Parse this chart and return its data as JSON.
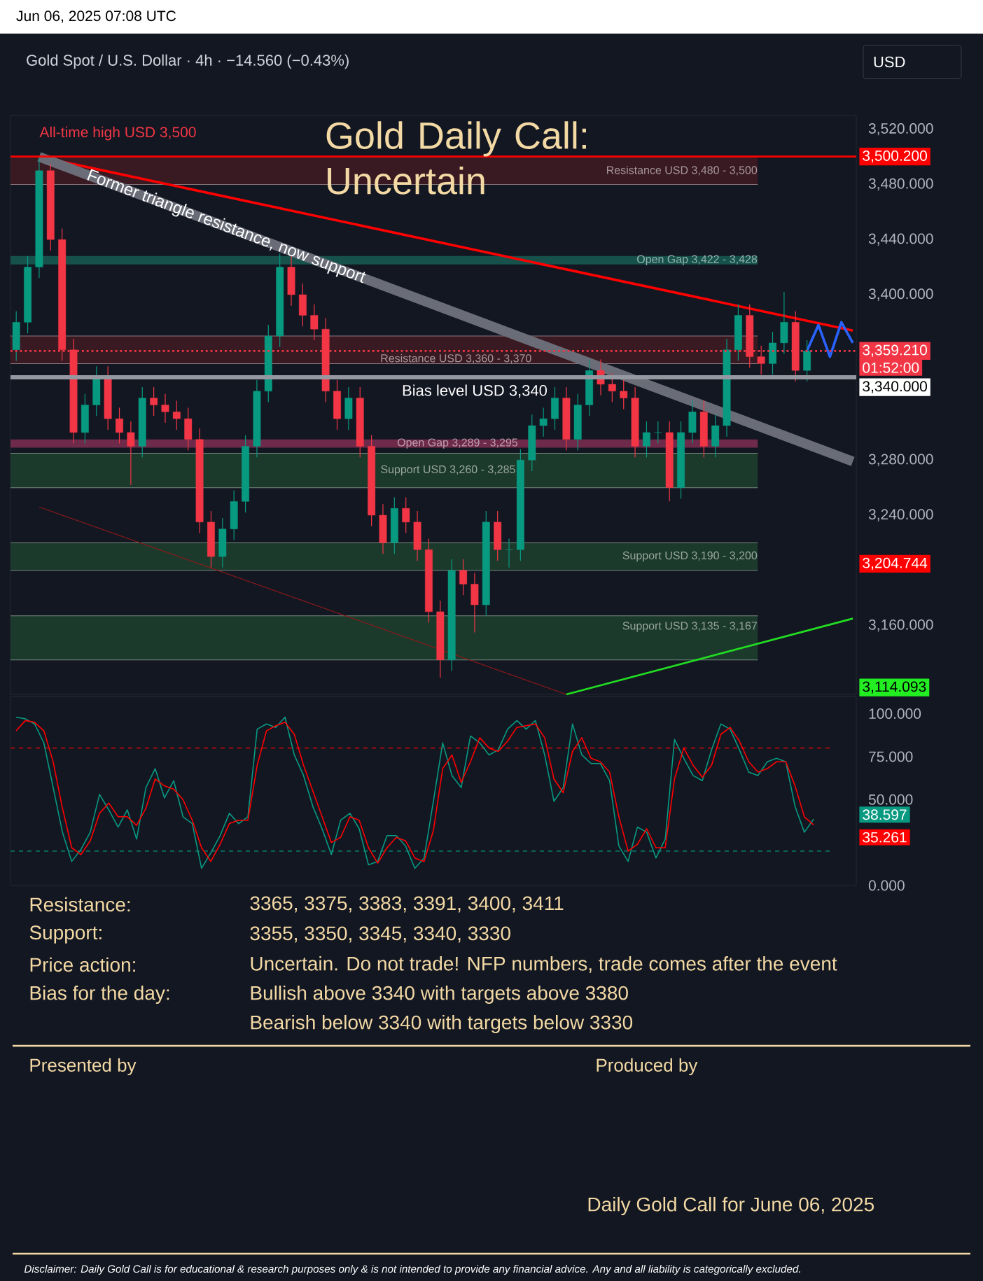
{
  "chart_data": [
    {
      "type": "candlestick",
      "title": "Gold Daily Call: Uncertain",
      "subtitle": "Gold Spot / U.S. Dollar · 4h · −14.560 (−0.43%)",
      "categories": [
        null,
        null,
        null,
        null,
        null,
        null,
        null,
        null,
        null,
        null,
        null,
        null,
        null,
        null,
        null,
        null,
        null,
        null,
        null,
        null,
        null,
        null,
        null,
        null,
        null,
        null,
        null,
        null,
        null,
        null,
        null,
        null,
        null,
        null,
        null,
        null,
        null,
        null,
        null,
        null,
        null,
        null,
        null,
        null,
        null,
        null,
        null,
        null,
        null,
        null,
        null,
        null,
        null,
        null,
        null,
        null,
        null,
        null,
        null,
        null,
        null,
        null,
        null,
        null,
        null,
        null,
        null,
        null,
        null,
        null,
        null,
        null,
        null,
        null
      ],
      "ohlc": [
        [
          3360,
          3388,
          3352,
          3380
        ],
        [
          3380,
          3428,
          3372,
          3420
        ],
        [
          3420,
          3500,
          3412,
          3490
        ],
        [
          3490,
          3495,
          3432,
          3440
        ],
        [
          3440,
          3448,
          3352,
          3360
        ],
        [
          3360,
          3368,
          3292,
          3300
        ],
        [
          3300,
          3328,
          3292,
          3320
        ],
        [
          3320,
          3348,
          3312,
          3340
        ],
        [
          3340,
          3348,
          3302,
          3310
        ],
        [
          3310,
          3318,
          3292,
          3300
        ],
        [
          3300,
          3308,
          3262,
          3290
        ],
        [
          3290,
          3333,
          3282,
          3325
        ],
        [
          3325,
          3333,
          3312,
          3320
        ],
        [
          3320,
          3328,
          3307,
          3315
        ],
        [
          3315,
          3323,
          3302,
          3310
        ],
        [
          3310,
          3318,
          3287,
          3295
        ],
        [
          3295,
          3303,
          3227,
          3235
        ],
        [
          3235,
          3243,
          3202,
          3210
        ],
        [
          3210,
          3238,
          3202,
          3230
        ],
        [
          3230,
          3258,
          3222,
          3250
        ],
        [
          3250,
          3298,
          3242,
          3290
        ],
        [
          3290,
          3338,
          3282,
          3330
        ],
        [
          3330,
          3378,
          3322,
          3370
        ],
        [
          3370,
          3430,
          3362,
          3420
        ],
        [
          3420,
          3428,
          3392,
          3400
        ],
        [
          3400,
          3408,
          3377,
          3385
        ],
        [
          3385,
          3393,
          3367,
          3375
        ],
        [
          3375,
          3383,
          3322,
          3330
        ],
        [
          3330,
          3338,
          3302,
          3310
        ],
        [
          3310,
          3333,
          3302,
          3325
        ],
        [
          3325,
          3333,
          3282,
          3290
        ],
        [
          3290,
          3298,
          3232,
          3240
        ],
        [
          3240,
          3248,
          3212,
          3220
        ],
        [
          3220,
          3253,
          3212,
          3245
        ],
        [
          3245,
          3253,
          3227,
          3235
        ],
        [
          3235,
          3243,
          3207,
          3215
        ],
        [
          3215,
          3223,
          3162,
          3170
        ],
        [
          3170,
          3178,
          3122,
          3135
        ],
        [
          3135,
          3208,
          3127,
          3200
        ],
        [
          3200,
          3208,
          3182,
          3190
        ],
        [
          3190,
          3198,
          3155,
          3175
        ],
        [
          3175,
          3243,
          3167,
          3235
        ],
        [
          3235,
          3243,
          3207,
          3215
        ],
        [
          3215,
          3223,
          3202,
          3215
        ],
        [
          3215,
          3288,
          3207,
          3280
        ],
        [
          3280,
          3313,
          3272,
          3305
        ],
        [
          3305,
          3318,
          3297,
          3310
        ],
        [
          3310,
          3333,
          3302,
          3325
        ],
        [
          3325,
          3333,
          3287,
          3295
        ],
        [
          3295,
          3328,
          3287,
          3320
        ],
        [
          3320,
          3353,
          3312,
          3345
        ],
        [
          3345,
          3353,
          3327,
          3335
        ],
        [
          3335,
          3343,
          3322,
          3330
        ],
        [
          3330,
          3338,
          3317,
          3325
        ],
        [
          3325,
          3333,
          3282,
          3290
        ],
        [
          3290,
          3308,
          3282,
          3300
        ],
        [
          3300,
          3308,
          3292,
          3300
        ],
        [
          3300,
          3308,
          3250,
          3260
        ],
        [
          3260,
          3308,
          3252,
          3300
        ],
        [
          3300,
          3323,
          3292,
          3315
        ],
        [
          3315,
          3323,
          3282,
          3290
        ],
        [
          3290,
          3313,
          3282,
          3305
        ],
        [
          3305,
          3368,
          3297,
          3360
        ],
        [
          3360,
          3393,
          3352,
          3385
        ],
        [
          3385,
          3393,
          3347,
          3355
        ],
        [
          3355,
          3363,
          3342,
          3350
        ],
        [
          3350,
          3373,
          3342,
          3365
        ],
        [
          3365,
          3402,
          3357,
          3380
        ],
        [
          3380,
          3388,
          3337,
          3345
        ],
        [
          3345,
          3367,
          3337,
          3359.21
        ],
        null,
        null,
        null,
        null
      ],
      "series": [
        {
          "type": "line",
          "color": "#ff0000",
          "values": [
            null,
            null,
            3500,
            null,
            null,
            null,
            null,
            null,
            null,
            null,
            null,
            null,
            null,
            null,
            null,
            null,
            null,
            null,
            null,
            null,
            null,
            null,
            null,
            null,
            null,
            null,
            null,
            null,
            null,
            null,
            null,
            null,
            null,
            null,
            null,
            null,
            null,
            null,
            null,
            null,
            null,
            null,
            null,
            null,
            null,
            null,
            null,
            null,
            null,
            null,
            null,
            null,
            null,
            null,
            null,
            null,
            null,
            null,
            null,
            null,
            null,
            null,
            null,
            null,
            null,
            null,
            null,
            null,
            null,
            null,
            null,
            null,
            null,
            3374
          ]
        },
        {
          "type": "line",
          "color": "#6a6d78",
          "values": [
            null,
            null,
            3500,
            null,
            null,
            null,
            null,
            null,
            null,
            null,
            null,
            null,
            null,
            null,
            null,
            null,
            null,
            null,
            null,
            null,
            null,
            null,
            null,
            null,
            null,
            null,
            null,
            null,
            null,
            null,
            null,
            null,
            null,
            null,
            null,
            null,
            null,
            null,
            null,
            null,
            null,
            null,
            null,
            null,
            null,
            null,
            null,
            null,
            null,
            null,
            null,
            null,
            null,
            null,
            null,
            null,
            null,
            null,
            null,
            null,
            null,
            null,
            null,
            null,
            null,
            null,
            null,
            null,
            null,
            null,
            null,
            null,
            null,
            3279
          ]
        },
        {
          "type": "line",
          "color": "#8b1a1a",
          "values": [
            null,
            null,
            3246,
            null,
            null,
            null,
            null,
            null,
            null,
            null,
            null,
            null,
            null,
            null,
            null,
            null,
            null,
            null,
            null,
            null,
            null,
            null,
            null,
            null,
            null,
            null,
            null,
            null,
            null,
            null,
            null,
            null,
            null,
            null,
            null,
            null,
            null,
            null,
            null,
            null,
            null,
            null,
            null,
            null,
            null,
            null,
            null,
            null,
            3110,
            null,
            null,
            null,
            null,
            null,
            null,
            null,
            null,
            null,
            null,
            null,
            null,
            null,
            null,
            null,
            null,
            null,
            null,
            null,
            null,
            null,
            null,
            null,
            null,
            null
          ]
        },
        {
          "type": "line",
          "color": "#22dd22",
          "values": [
            null,
            null,
            null,
            null,
            null,
            null,
            null,
            null,
            null,
            null,
            null,
            null,
            null,
            null,
            null,
            null,
            null,
            null,
            null,
            null,
            null,
            null,
            null,
            null,
            null,
            null,
            null,
            null,
            null,
            null,
            null,
            null,
            null,
            null,
            null,
            null,
            null,
            null,
            null,
            null,
            null,
            null,
            null,
            null,
            null,
            null,
            null,
            null,
            3110,
            null,
            null,
            null,
            null,
            null,
            null,
            null,
            null,
            null,
            null,
            null,
            null,
            null,
            null,
            null,
            null,
            null,
            null,
            null,
            null,
            null,
            null,
            null,
            null,
            3165
          ]
        },
        {
          "type": "line",
          "color": "#2962ff",
          "values": [
            null,
            null,
            null,
            null,
            null,
            null,
            null,
            null,
            null,
            null,
            null,
            null,
            null,
            null,
            null,
            null,
            null,
            null,
            null,
            null,
            null,
            null,
            null,
            null,
            null,
            null,
            null,
            null,
            null,
            null,
            null,
            null,
            null,
            null,
            null,
            null,
            null,
            null,
            null,
            null,
            null,
            null,
            null,
            null,
            null,
            null,
            null,
            null,
            null,
            null,
            null,
            null,
            null,
            null,
            null,
            null,
            null,
            null,
            null,
            null,
            null,
            null,
            null,
            null,
            null,
            null,
            null,
            null,
            null,
            3359.21,
            3378,
            3355,
            3380,
            3365
          ]
        }
      ],
      "ylim": [
        3110,
        3530
      ],
      "yticks": [
        {
          "value": 3160,
          "label": "3,160.000"
        },
        {
          "value": 3240,
          "label": "3,240.000"
        },
        {
          "value": 3280,
          "label": "3,280.000"
        },
        {
          "value": 3400,
          "label": "3,400.000"
        },
        {
          "value": 3440,
          "label": "3,440.000"
        },
        {
          "value": 3480,
          "label": "3,480.000"
        },
        {
          "value": 3520,
          "label": "3,520.000"
        }
      ],
      "bands": [
        {
          "axis": "y",
          "from": 3480,
          "to": 3500,
          "label": "Resistance USD 3,480 - 3,500",
          "color": "#3a1a22"
        },
        {
          "axis": "y",
          "from": 3422,
          "to": 3428,
          "label": "Open Gap 3,422 - 3,428",
          "color": "#16524b"
        },
        {
          "axis": "y",
          "from": 3350,
          "to": 3370,
          "label": "Resistance USD 3,360 - 3,370",
          "color": "#3a1a22"
        },
        {
          "axis": "y",
          "from": 3289,
          "to": 3295,
          "label": "Open Gap 3,289 - 3,295",
          "color": "#6e2a4a"
        },
        {
          "axis": "y",
          "from": 3260,
          "to": 3285,
          "label": "Support USD 3,260 - 3,285",
          "color": "#1c3a2c"
        },
        {
          "axis": "y",
          "from": 3200,
          "to": 3220,
          "label": "Support USD 3,190 - 3,200",
          "color": "#1c3a2c"
        },
        {
          "axis": "y",
          "from": 3135,
          "to": 3167,
          "label": "Support USD 3,135 - 3,167",
          "color": "#1c3a2c"
        }
      ],
      "ref_lines": [
        {
          "axis": "y",
          "value": 3500.2,
          "label": "3,500.200",
          "color": "#ff0000"
        },
        {
          "axis": "y",
          "value": 3359.21,
          "label": "3,359.210",
          "color": "#f23645",
          "line_style": "dotted"
        },
        {
          "axis": "y",
          "value": 3340,
          "label": "3,340.000",
          "color": "#9598a1"
        }
      ],
      "annotations": [
        "Jun 06, 2025 07:08 UTC",
        "USD",
        "All-time high USD 3,500",
        "Former triangle resistance, now support",
        "Bias level USD 3,340",
        "01:52:00",
        "3,204.744",
        "3,114.093"
      ]
    },
    {
      "type": "line",
      "categories": [
        null,
        null,
        null,
        null,
        null,
        null,
        null,
        null,
        null,
        null,
        null,
        null,
        null,
        null,
        null,
        null,
        null,
        null,
        null,
        null,
        null,
        null,
        null,
        null,
        null,
        null,
        null,
        null,
        null,
        null,
        null,
        null,
        null,
        null,
        null,
        null,
        null,
        null,
        null,
        null,
        null,
        null,
        null,
        null,
        null,
        null,
        null,
        null,
        null,
        null,
        null,
        null,
        null,
        null,
        null,
        null,
        null,
        null,
        null,
        null,
        null,
        null,
        null,
        null,
        null,
        null,
        null,
        null,
        null,
        null,
        null,
        null,
        null,
        null,
        null,
        null,
        null,
        null,
        null,
        null,
        null,
        null,
        null,
        null,
        null,
        null,
        null
      ],
      "series": [
        {
          "color": "#089981",
          "values": [
            98,
            97,
            94,
            83,
            57,
            31,
            14,
            21,
            31,
            53,
            44,
            34,
            44,
            27,
            57,
            68,
            51,
            61,
            40,
            36,
            10,
            19,
            29,
            42,
            36,
            40,
            91,
            94,
            92,
            98,
            76,
            64,
            46,
            33,
            18,
            38,
            42,
            33,
            12,
            14,
            29,
            29,
            23,
            10,
            16,
            49,
            83,
            64,
            57,
            87,
            83,
            76,
            79,
            91,
            96,
            91,
            96,
            76,
            49,
            57,
            94,
            76,
            71,
            71,
            61,
            23,
            14,
            34,
            31,
            16,
            27,
            85,
            74,
            64,
            61,
            79,
            94,
            91,
            79,
            66,
            64,
            72,
            74,
            72,
            46,
            31,
            38.597
          ]
        },
        {
          "color": "#ff0000",
          "values": [
            90,
            96,
            95,
            90,
            72,
            45,
            22,
            18,
            26,
            42,
            48,
            40,
            40,
            35,
            45,
            62,
            58,
            56,
            50,
            38,
            22,
            14,
            24,
            36,
            38,
            38,
            70,
            90,
            93,
            95,
            88,
            70,
            55,
            40,
            25,
            28,
            40,
            38,
            22,
            13,
            22,
            28,
            26,
            16,
            14,
            32,
            68,
            76,
            60,
            72,
            86,
            80,
            78,
            84,
            92,
            93,
            94,
            86,
            62,
            54,
            78,
            86,
            74,
            72,
            66,
            40,
            20,
            24,
            33,
            22,
            22,
            62,
            80,
            70,
            63,
            70,
            88,
            92,
            84,
            72,
            66,
            68,
            72,
            72,
            58,
            40,
            35.261
          ]
        }
      ],
      "ylim": [
        0,
        110
      ],
      "yticks": [
        {
          "value": 0,
          "label": "0.000"
        },
        {
          "value": 50,
          "label": "50.000"
        },
        {
          "value": 75,
          "label": "75.000"
        },
        {
          "value": 100,
          "label": "100.000"
        }
      ],
      "ref_lines": [
        {
          "axis": "y",
          "value": 80,
          "color": "#ff0000",
          "line_style": "dashed"
        },
        {
          "axis": "y",
          "value": 20,
          "color": "#089981",
          "line_style": "dashed"
        }
      ],
      "annotations": [
        "38.597",
        "35.261"
      ]
    },
    {
      "type": "other",
      "annotations": [
        "Resistance:",
        "3365, 3375, 3383, 3391, 3400, 3411",
        "Support:",
        "3355, 3350, 3345, 3340, 3330",
        "Price action:",
        "Uncertain. Do not trade! NFP numbers, trade comes after the event",
        "Bias for the day:",
        "Bullish above 3340 with targets above 3380",
        "Bearish below 3340 with targets below 3330",
        "Presented by",
        "Produced by",
        "Daily Gold Call for June 06, 2025",
        "Disclaimer: Daily Gold Call is for educational & research purposes only & is not intended to provide any financial advice. Any and all liability is categorically excluded."
      ]
    }
  ]
}
